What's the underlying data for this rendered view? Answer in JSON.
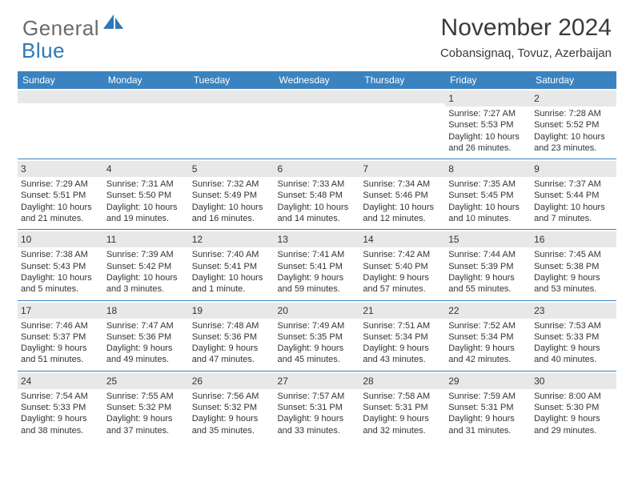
{
  "logo": {
    "general": "General",
    "blue": "Blue"
  },
  "title": "November 2024",
  "location": "Cobansignaq, Tovuz, Azerbaijan",
  "colors": {
    "header_bg": "#3b83c0",
    "band_bg": "#e8e8e8",
    "logo_gray": "#6b6b6b",
    "logo_blue": "#2f77b9"
  },
  "day_headers": [
    "Sunday",
    "Monday",
    "Tuesday",
    "Wednesday",
    "Thursday",
    "Friday",
    "Saturday"
  ],
  "weeks": [
    [
      null,
      null,
      null,
      null,
      null,
      {
        "n": "1",
        "sr": "Sunrise: 7:27 AM",
        "ss": "Sunset: 5:53 PM",
        "d1": "Daylight: 10 hours",
        "d2": "and 26 minutes."
      },
      {
        "n": "2",
        "sr": "Sunrise: 7:28 AM",
        "ss": "Sunset: 5:52 PM",
        "d1": "Daylight: 10 hours",
        "d2": "and 23 minutes."
      }
    ],
    [
      {
        "n": "3",
        "sr": "Sunrise: 7:29 AM",
        "ss": "Sunset: 5:51 PM",
        "d1": "Daylight: 10 hours",
        "d2": "and 21 minutes."
      },
      {
        "n": "4",
        "sr": "Sunrise: 7:31 AM",
        "ss": "Sunset: 5:50 PM",
        "d1": "Daylight: 10 hours",
        "d2": "and 19 minutes."
      },
      {
        "n": "5",
        "sr": "Sunrise: 7:32 AM",
        "ss": "Sunset: 5:49 PM",
        "d1": "Daylight: 10 hours",
        "d2": "and 16 minutes."
      },
      {
        "n": "6",
        "sr": "Sunrise: 7:33 AM",
        "ss": "Sunset: 5:48 PM",
        "d1": "Daylight: 10 hours",
        "d2": "and 14 minutes."
      },
      {
        "n": "7",
        "sr": "Sunrise: 7:34 AM",
        "ss": "Sunset: 5:46 PM",
        "d1": "Daylight: 10 hours",
        "d2": "and 12 minutes."
      },
      {
        "n": "8",
        "sr": "Sunrise: 7:35 AM",
        "ss": "Sunset: 5:45 PM",
        "d1": "Daylight: 10 hours",
        "d2": "and 10 minutes."
      },
      {
        "n": "9",
        "sr": "Sunrise: 7:37 AM",
        "ss": "Sunset: 5:44 PM",
        "d1": "Daylight: 10 hours",
        "d2": "and 7 minutes."
      }
    ],
    [
      {
        "n": "10",
        "sr": "Sunrise: 7:38 AM",
        "ss": "Sunset: 5:43 PM",
        "d1": "Daylight: 10 hours",
        "d2": "and 5 minutes."
      },
      {
        "n": "11",
        "sr": "Sunrise: 7:39 AM",
        "ss": "Sunset: 5:42 PM",
        "d1": "Daylight: 10 hours",
        "d2": "and 3 minutes."
      },
      {
        "n": "12",
        "sr": "Sunrise: 7:40 AM",
        "ss": "Sunset: 5:41 PM",
        "d1": "Daylight: 10 hours",
        "d2": "and 1 minute."
      },
      {
        "n": "13",
        "sr": "Sunrise: 7:41 AM",
        "ss": "Sunset: 5:41 PM",
        "d1": "Daylight: 9 hours",
        "d2": "and 59 minutes."
      },
      {
        "n": "14",
        "sr": "Sunrise: 7:42 AM",
        "ss": "Sunset: 5:40 PM",
        "d1": "Daylight: 9 hours",
        "d2": "and 57 minutes."
      },
      {
        "n": "15",
        "sr": "Sunrise: 7:44 AM",
        "ss": "Sunset: 5:39 PM",
        "d1": "Daylight: 9 hours",
        "d2": "and 55 minutes."
      },
      {
        "n": "16",
        "sr": "Sunrise: 7:45 AM",
        "ss": "Sunset: 5:38 PM",
        "d1": "Daylight: 9 hours",
        "d2": "and 53 minutes."
      }
    ],
    [
      {
        "n": "17",
        "sr": "Sunrise: 7:46 AM",
        "ss": "Sunset: 5:37 PM",
        "d1": "Daylight: 9 hours",
        "d2": "and 51 minutes."
      },
      {
        "n": "18",
        "sr": "Sunrise: 7:47 AM",
        "ss": "Sunset: 5:36 PM",
        "d1": "Daylight: 9 hours",
        "d2": "and 49 minutes."
      },
      {
        "n": "19",
        "sr": "Sunrise: 7:48 AM",
        "ss": "Sunset: 5:36 PM",
        "d1": "Daylight: 9 hours",
        "d2": "and 47 minutes."
      },
      {
        "n": "20",
        "sr": "Sunrise: 7:49 AM",
        "ss": "Sunset: 5:35 PM",
        "d1": "Daylight: 9 hours",
        "d2": "and 45 minutes."
      },
      {
        "n": "21",
        "sr": "Sunrise: 7:51 AM",
        "ss": "Sunset: 5:34 PM",
        "d1": "Daylight: 9 hours",
        "d2": "and 43 minutes."
      },
      {
        "n": "22",
        "sr": "Sunrise: 7:52 AM",
        "ss": "Sunset: 5:34 PM",
        "d1": "Daylight: 9 hours",
        "d2": "and 42 minutes."
      },
      {
        "n": "23",
        "sr": "Sunrise: 7:53 AM",
        "ss": "Sunset: 5:33 PM",
        "d1": "Daylight: 9 hours",
        "d2": "and 40 minutes."
      }
    ],
    [
      {
        "n": "24",
        "sr": "Sunrise: 7:54 AM",
        "ss": "Sunset: 5:33 PM",
        "d1": "Daylight: 9 hours",
        "d2": "and 38 minutes."
      },
      {
        "n": "25",
        "sr": "Sunrise: 7:55 AM",
        "ss": "Sunset: 5:32 PM",
        "d1": "Daylight: 9 hours",
        "d2": "and 37 minutes."
      },
      {
        "n": "26",
        "sr": "Sunrise: 7:56 AM",
        "ss": "Sunset: 5:32 PM",
        "d1": "Daylight: 9 hours",
        "d2": "and 35 minutes."
      },
      {
        "n": "27",
        "sr": "Sunrise: 7:57 AM",
        "ss": "Sunset: 5:31 PM",
        "d1": "Daylight: 9 hours",
        "d2": "and 33 minutes."
      },
      {
        "n": "28",
        "sr": "Sunrise: 7:58 AM",
        "ss": "Sunset: 5:31 PM",
        "d1": "Daylight: 9 hours",
        "d2": "and 32 minutes."
      },
      {
        "n": "29",
        "sr": "Sunrise: 7:59 AM",
        "ss": "Sunset: 5:31 PM",
        "d1": "Daylight: 9 hours",
        "d2": "and 31 minutes."
      },
      {
        "n": "30",
        "sr": "Sunrise: 8:00 AM",
        "ss": "Sunset: 5:30 PM",
        "d1": "Daylight: 9 hours",
        "d2": "and 29 minutes."
      }
    ]
  ]
}
